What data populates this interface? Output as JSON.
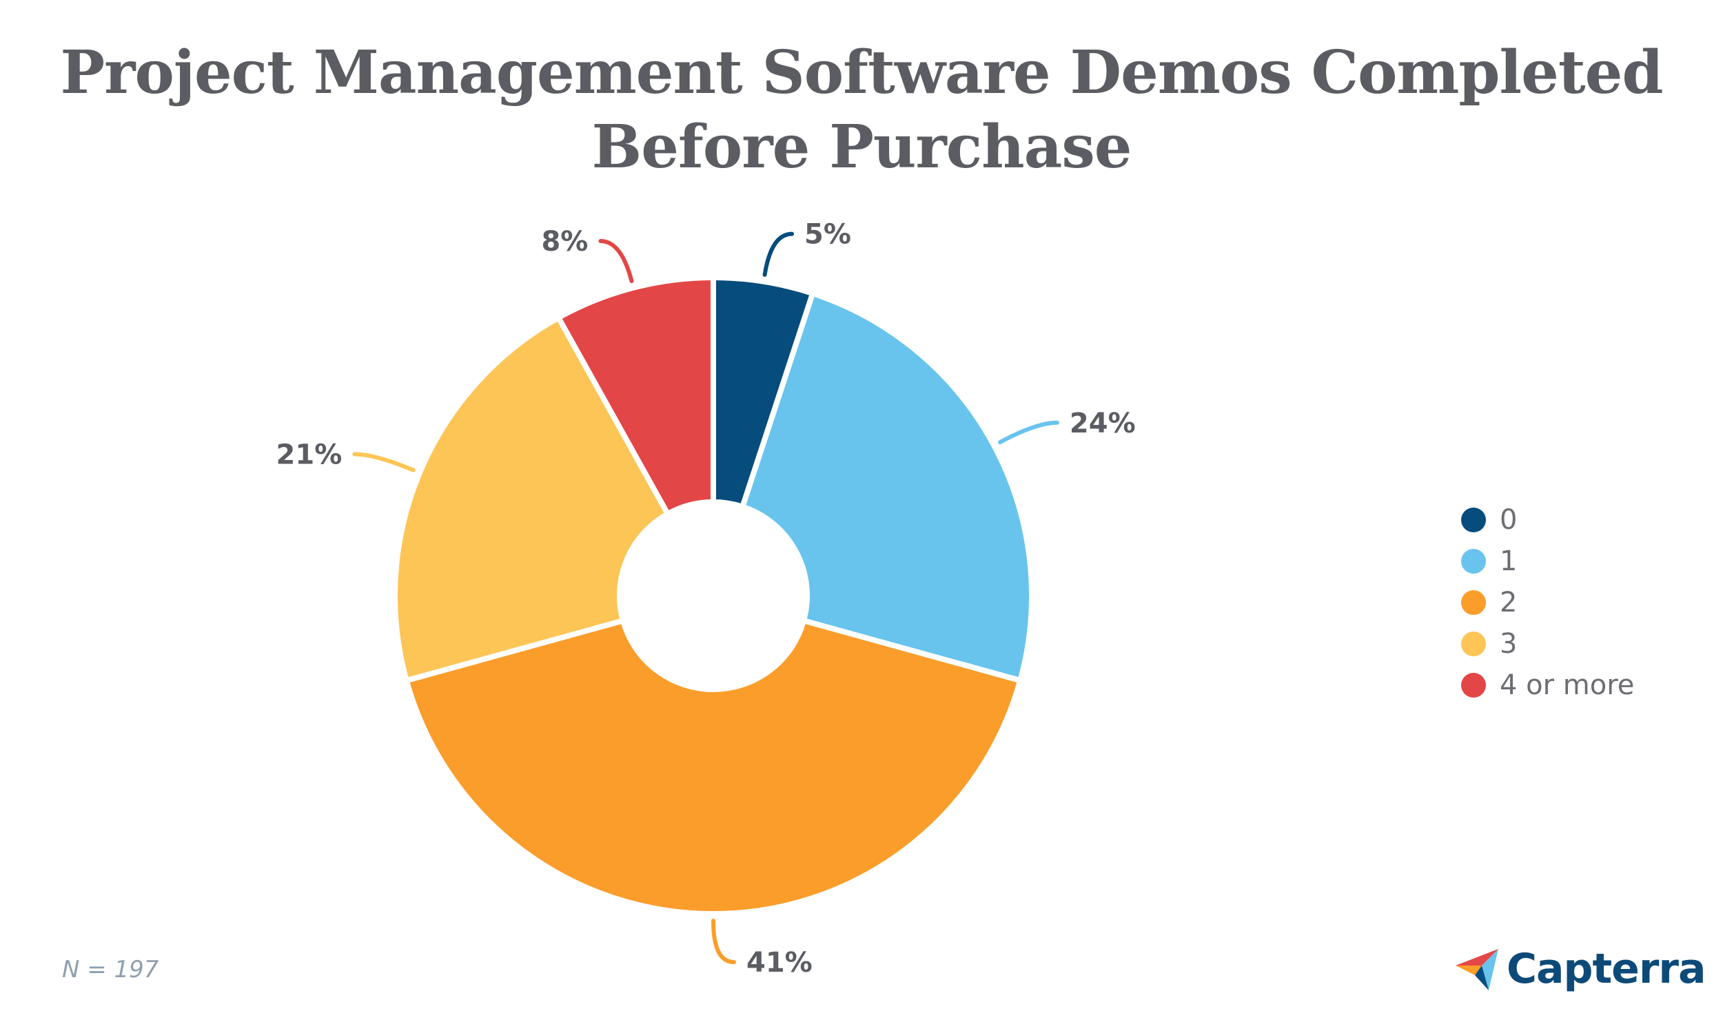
{
  "chart_data": {
    "type": "pie",
    "title": "Project Management Software Demos Completed Before Purchase",
    "categories": [
      "0",
      "1",
      "2",
      "3",
      "4 or more"
    ],
    "values": [
      5,
      24,
      41,
      21,
      8
    ],
    "labels": [
      "5%",
      "24%",
      "41%",
      "21%",
      "8%"
    ],
    "colors": [
      "#064c7d",
      "#68c4ed",
      "#fb9d2b",
      "#fdc556",
      "#e34646"
    ],
    "donut": true,
    "legend_position": "right"
  },
  "legend": [
    {
      "label": "0",
      "color": "#064c7d"
    },
    {
      "label": "1",
      "color": "#68c4ed"
    },
    {
      "label": "2",
      "color": "#fb9d2b"
    },
    {
      "label": "3",
      "color": "#fdc556"
    },
    {
      "label": "4 or more",
      "color": "#e34646"
    }
  ],
  "note": "N = 197",
  "brand": {
    "name": "Capterra",
    "icon": "capterra-logo-icon"
  }
}
